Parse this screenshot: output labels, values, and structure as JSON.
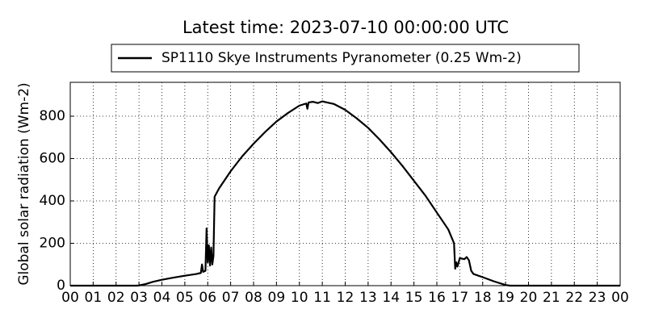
{
  "chart_data": {
    "type": "line",
    "title": "Latest time: 2023-07-10 00:00:00 UTC",
    "y_label": "Global solar radiation (Wm-2)",
    "x": [
      0,
      1,
      2,
      2.9,
      3.0,
      3.3,
      3.6,
      4.0,
      4.5,
      5.0,
      5.5,
      5.7,
      5.75,
      5.8,
      5.9,
      5.95,
      6.0,
      6.05,
      6.1,
      6.15,
      6.2,
      6.25,
      6.3,
      6.5,
      7.0,
      7.5,
      8.0,
      8.5,
      9.0,
      9.5,
      10.0,
      10.3,
      10.35,
      10.4,
      10.6,
      10.8,
      11.0,
      11.2,
      11.5,
      12.0,
      12.5,
      13.0,
      13.5,
      14.0,
      14.5,
      15.0,
      15.5,
      16.0,
      16.5,
      16.75,
      16.8,
      16.85,
      16.9,
      17.0,
      17.2,
      17.3,
      17.4,
      17.5,
      17.6,
      18.0,
      18.5,
      19.0,
      19.2,
      20,
      24
    ],
    "series": [
      {
        "name": "SP1110 Skye Instruments Pyranometer (0.25 Wm-2)",
        "color": "#000000",
        "values": [
          0,
          0,
          0,
          0,
          1,
          8,
          18,
          28,
          38,
          47,
          55,
          60,
          100,
          65,
          70,
          270,
          110,
          190,
          95,
          180,
          100,
          140,
          420,
          460,
          540,
          610,
          670,
          725,
          775,
          815,
          850,
          860,
          835,
          865,
          868,
          862,
          870,
          865,
          858,
          830,
          790,
          745,
          690,
          630,
          565,
          495,
          425,
          345,
          265,
          200,
          80,
          110,
          90,
          130,
          125,
          135,
          120,
          70,
          55,
          40,
          20,
          3,
          0,
          0,
          0
        ]
      }
    ],
    "xlim": [
      0,
      24
    ],
    "xticks": [
      {
        "value": 0,
        "label": "00"
      },
      {
        "value": 1,
        "label": "01"
      },
      {
        "value": 2,
        "label": "02"
      },
      {
        "value": 3,
        "label": "03"
      },
      {
        "value": 4,
        "label": "04"
      },
      {
        "value": 5,
        "label": "05"
      },
      {
        "value": 6,
        "label": "06"
      },
      {
        "value": 7,
        "label": "07"
      },
      {
        "value": 8,
        "label": "08"
      },
      {
        "value": 9,
        "label": "09"
      },
      {
        "value": 10,
        "label": "10"
      },
      {
        "value": 11,
        "label": "11"
      },
      {
        "value": 12,
        "label": "12"
      },
      {
        "value": 13,
        "label": "13"
      },
      {
        "value": 14,
        "label": "14"
      },
      {
        "value": 15,
        "label": "15"
      },
      {
        "value": 16,
        "label": "16"
      },
      {
        "value": 17,
        "label": "17"
      },
      {
        "value": 18,
        "label": "18"
      },
      {
        "value": 19,
        "label": "19"
      },
      {
        "value": 20,
        "label": "20"
      },
      {
        "value": 21,
        "label": "21"
      },
      {
        "value": 22,
        "label": "22"
      },
      {
        "value": 23,
        "label": "23"
      },
      {
        "value": 24,
        "label": "00"
      }
    ],
    "ylim": [
      0,
      960
    ],
    "yticks": [
      0,
      200,
      400,
      600,
      800
    ],
    "grid": true,
    "legend": "top"
  }
}
